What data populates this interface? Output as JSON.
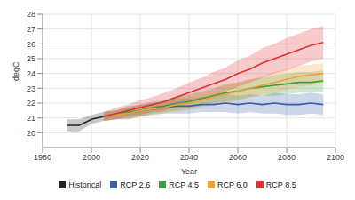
{
  "chart_data": {
    "type": "line",
    "x_label": "Year",
    "y_label": "degC",
    "x": [
      1990,
      1995,
      2000,
      2005,
      2010,
      2015,
      2020,
      2025,
      2030,
      2035,
      2040,
      2045,
      2050,
      2055,
      2060,
      2065,
      2070,
      2075,
      2080,
      2085,
      2090,
      2095
    ],
    "xlim": [
      1980,
      2100
    ],
    "xticks": [
      1980,
      2000,
      2020,
      2040,
      2060,
      2080,
      2100
    ],
    "ylim": [
      19,
      28
    ],
    "yticks": [
      20,
      21,
      22,
      23,
      24,
      25,
      26,
      27,
      28
    ],
    "grid": true,
    "legend": "bottom",
    "series": [
      {
        "name": "Historical",
        "color": "#222222",
        "values": [
          20.5,
          20.5,
          20.9,
          21.1,
          null,
          null,
          null,
          null,
          null,
          null,
          null,
          null,
          null,
          null,
          null,
          null,
          null,
          null,
          null,
          null,
          null,
          null
        ],
        "low": [
          20.1,
          20.1,
          20.6,
          20.8,
          null,
          null,
          null,
          null,
          null,
          null,
          null,
          null,
          null,
          null,
          null,
          null,
          null,
          null,
          null,
          null,
          null,
          null
        ],
        "high": [
          20.9,
          20.9,
          21.2,
          21.4,
          null,
          null,
          null,
          null,
          null,
          null,
          null,
          null,
          null,
          null,
          null,
          null,
          null,
          null,
          null,
          null,
          null,
          null
        ]
      },
      {
        "name": "RCP 2.6",
        "color": "#3a5fa8",
        "values": [
          null,
          null,
          null,
          21.1,
          21.2,
          21.3,
          21.5,
          21.6,
          21.7,
          21.8,
          21.8,
          21.9,
          21.9,
          22.0,
          21.9,
          22.0,
          21.9,
          22.0,
          21.9,
          21.9,
          22.0,
          21.9
        ],
        "low": [
          null,
          null,
          null,
          20.8,
          20.9,
          20.9,
          21.1,
          21.2,
          21.3,
          21.3,
          21.3,
          21.4,
          21.4,
          21.4,
          21.3,
          21.4,
          21.3,
          21.3,
          21.2,
          21.2,
          21.3,
          21.2
        ],
        "high": [
          null,
          null,
          null,
          21.4,
          21.5,
          21.7,
          21.9,
          22.0,
          22.1,
          22.3,
          22.3,
          22.4,
          22.4,
          22.6,
          22.5,
          22.6,
          22.5,
          22.7,
          22.6,
          22.6,
          22.7,
          22.6
        ]
      },
      {
        "name": "RCP 4.5",
        "color": "#3f9b3f",
        "values": [
          null,
          null,
          null,
          21.1,
          21.2,
          21.4,
          21.5,
          21.7,
          21.8,
          22.0,
          22.1,
          22.3,
          22.5,
          22.7,
          22.8,
          23.0,
          23.1,
          23.2,
          23.3,
          23.4,
          23.4,
          23.5
        ],
        "low": [
          null,
          null,
          null,
          20.8,
          20.9,
          21.0,
          21.1,
          21.3,
          21.4,
          21.5,
          21.6,
          21.8,
          22.0,
          22.1,
          22.2,
          22.4,
          22.5,
          22.5,
          22.6,
          22.7,
          22.7,
          22.8
        ],
        "high": [
          null,
          null,
          null,
          21.4,
          21.5,
          21.8,
          21.9,
          22.1,
          22.2,
          22.5,
          22.6,
          22.8,
          23.0,
          23.3,
          23.4,
          23.6,
          23.7,
          23.9,
          24.0,
          24.1,
          24.1,
          24.2
        ]
      },
      {
        "name": "RCP 6.0",
        "color": "#f0a030",
        "values": [
          null,
          null,
          null,
          21.1,
          21.2,
          21.3,
          21.5,
          21.6,
          21.7,
          21.9,
          22.0,
          22.2,
          22.4,
          22.6,
          22.8,
          23.0,
          23.2,
          23.4,
          23.6,
          23.8,
          23.9,
          24.0
        ],
        "low": [
          null,
          null,
          null,
          20.8,
          20.9,
          20.9,
          21.1,
          21.2,
          21.3,
          21.4,
          21.5,
          21.7,
          21.9,
          22.0,
          22.2,
          22.4,
          22.6,
          22.7,
          22.9,
          23.1,
          23.2,
          23.3
        ],
        "high": [
          null,
          null,
          null,
          21.4,
          21.5,
          21.7,
          21.9,
          22.0,
          22.1,
          22.4,
          22.5,
          22.7,
          22.9,
          23.2,
          23.4,
          23.6,
          23.8,
          24.1,
          24.3,
          24.5,
          24.6,
          24.7
        ]
      },
      {
        "name": "RCP 8.5",
        "color": "#e03030",
        "values": [
          null,
          null,
          null,
          21.1,
          21.3,
          21.5,
          21.7,
          21.9,
          22.1,
          22.4,
          22.7,
          23.0,
          23.3,
          23.6,
          24.0,
          24.3,
          24.7,
          25.0,
          25.3,
          25.6,
          25.9,
          26.1
        ],
        "low": [
          null,
          null,
          null,
          20.8,
          20.9,
          21.1,
          21.2,
          21.4,
          21.5,
          21.8,
          22.0,
          22.3,
          22.5,
          22.8,
          23.1,
          23.4,
          23.7,
          24.0,
          24.2,
          24.5,
          24.8,
          25.0
        ],
        "high": [
          null,
          null,
          null,
          21.4,
          21.7,
          21.9,
          22.2,
          22.4,
          22.7,
          23.0,
          23.4,
          23.7,
          24.1,
          24.4,
          24.9,
          25.2,
          25.7,
          26.0,
          26.4,
          26.7,
          27.0,
          27.2
        ]
      }
    ]
  }
}
